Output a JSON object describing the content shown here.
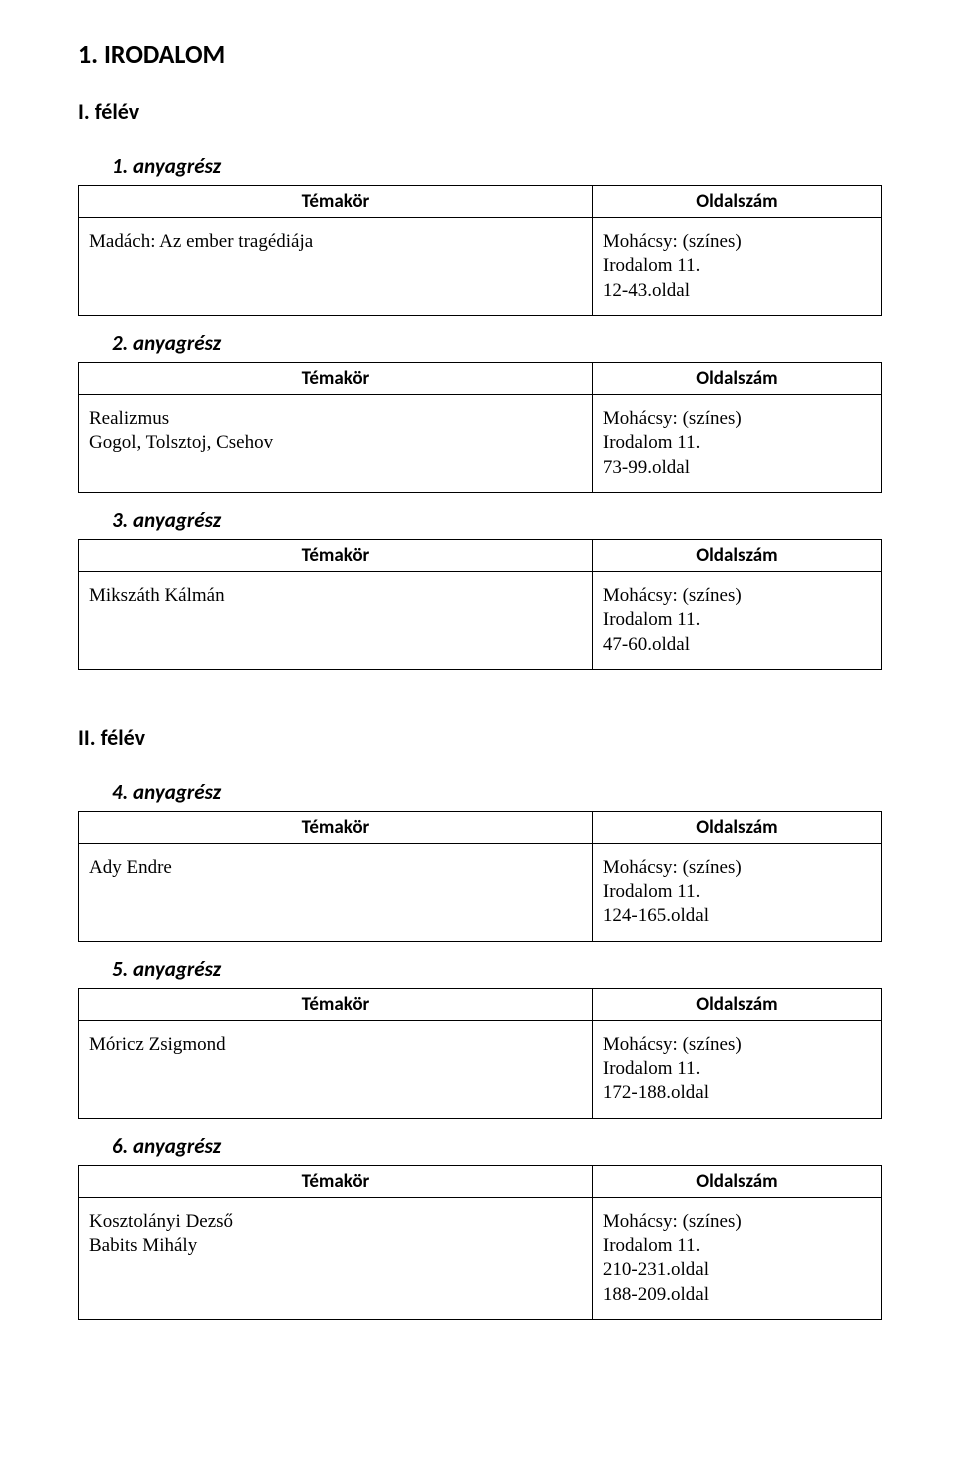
{
  "title": "1.  IRODALOM",
  "semesters": [
    {
      "heading": "I. félév",
      "sections": [
        {
          "heading": "1. anyagrész",
          "header_topic": "Témakör",
          "header_page": "Oldalszám",
          "topic": "Madách: Az ember tragédiája",
          "pages": "   Mohácsy: (színes)\nIrodalom 11.\n12-43.oldal"
        },
        {
          "heading": "2. anyagrész",
          "header_topic": "Témakör",
          "header_page": "Oldalszám",
          "topic": "Realizmus\nGogol, Tolsztoj, Csehov",
          "pages": "   Mohácsy: (színes)\nIrodalom 11.\n73-99.oldal"
        },
        {
          "heading": "3. anyagrész",
          "header_topic": "Témakör",
          "header_page": "Oldalszám",
          "topic": "Mikszáth Kálmán",
          "pages": "   Mohácsy: (színes)\nIrodalom 11.\n47-60.oldal"
        }
      ]
    },
    {
      "heading": "II. félév",
      "sections": [
        {
          "heading": "4. anyagrész",
          "header_topic": "Témakör",
          "header_page": "Oldalszám",
          "topic": "Ady Endre",
          "pages": "   Mohácsy: (színes)\nIrodalom 11.\n     124-165.oldal"
        },
        {
          "heading": "5. anyagrész",
          "header_topic": "Témakör",
          "header_page": "Oldalszám",
          "topic": "Móricz Zsigmond",
          "pages": "   Mohácsy: (színes)\nIrodalom 11.\n     172-188.oldal"
        },
        {
          "heading": "6. anyagrész",
          "header_topic": "Témakör",
          "header_page": "Oldalszám",
          "topic": "Kosztolányi Dezső\nBabits Mihály",
          "pages": "   Mohácsy: (színes)\nIrodalom 11.\n   210-231.oldal\n   188-209.oldal"
        }
      ]
    }
  ]
}
